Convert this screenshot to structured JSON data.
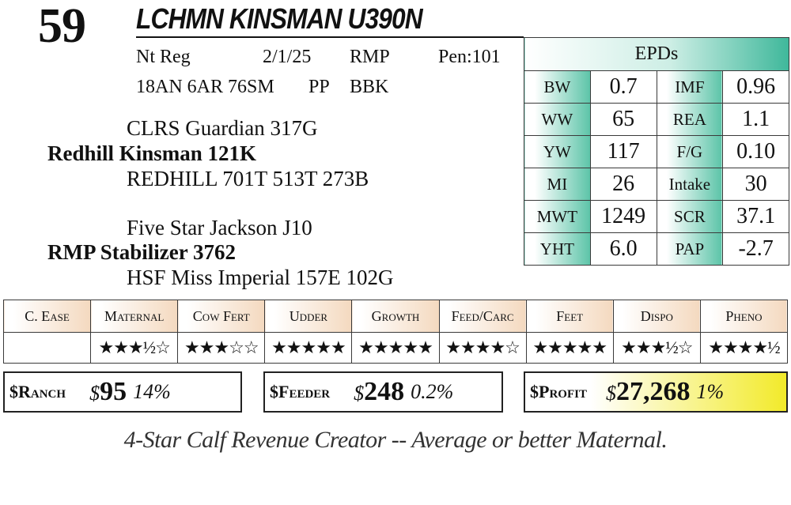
{
  "header": {
    "lot": "59",
    "name": "LCHMN KINSMAN U390N"
  },
  "info": {
    "line1": [
      "Nt Reg",
      "2/1/25",
      "RMP",
      "Pen:101"
    ],
    "line2": [
      "18AN 6AR 76SM",
      "PP",
      "BBK"
    ]
  },
  "pedigree": {
    "sire_sire": "CLRS Guardian 317G",
    "sire": "Redhill Kinsman 121K",
    "sire_dam": "REDHILL 701T 513T 273B",
    "dam_sire": "Five Star Jackson J10",
    "dam": "RMP Stabilizer 3762",
    "dam_dam": "HSF Miss Imperial 157E 102G"
  },
  "epds": {
    "title": "EPDs",
    "rows": [
      {
        "l1": "BW",
        "v1": "0.7",
        "l2": "IMF",
        "v2": "0.96"
      },
      {
        "l1": "WW",
        "v1": "65",
        "l2": "REA",
        "v2": "1.1"
      },
      {
        "l1": "YW",
        "v1": "117",
        "l2": "F/G",
        "v2": "0.10"
      },
      {
        "l1": "MI",
        "v1": "26",
        "l2": "Intake",
        "v2": "30"
      },
      {
        "l1": "MWT",
        "v1": "1249",
        "l2": "SCR",
        "v2": "37.1"
      },
      {
        "l1": "YHT",
        "v1": "6.0",
        "l2": "PAP",
        "v2": "-2.7"
      }
    ]
  },
  "traits": {
    "headers": [
      "C. Ease",
      "Maternal",
      "Cow Fert",
      "Udder",
      "Growth",
      "Feed/Carc",
      "Feet",
      "Dispo",
      "Pheno"
    ],
    "stars": [
      "",
      "★★★½☆",
      "★★★☆☆",
      "★★★★★",
      "★★★★★",
      "★★★★☆",
      "★★★★★",
      "★★★½☆",
      "★★★★½"
    ]
  },
  "values": {
    "ranch": {
      "label": "$Ranch",
      "amount": "95",
      "pct": "14%"
    },
    "feeder": {
      "label": "$Feeder",
      "amount": "248",
      "pct": "0.2%"
    },
    "profit": {
      "label": "$Profit",
      "amount": "27,268",
      "pct": "1%"
    }
  },
  "tagline": "4-Star Calf Revenue Creator -- Average or better Maternal.",
  "colors": {
    "epd_accent": "#3fb89b",
    "trait_header": "#f4d9bf",
    "profit_highlight": "#f2ea2a"
  }
}
